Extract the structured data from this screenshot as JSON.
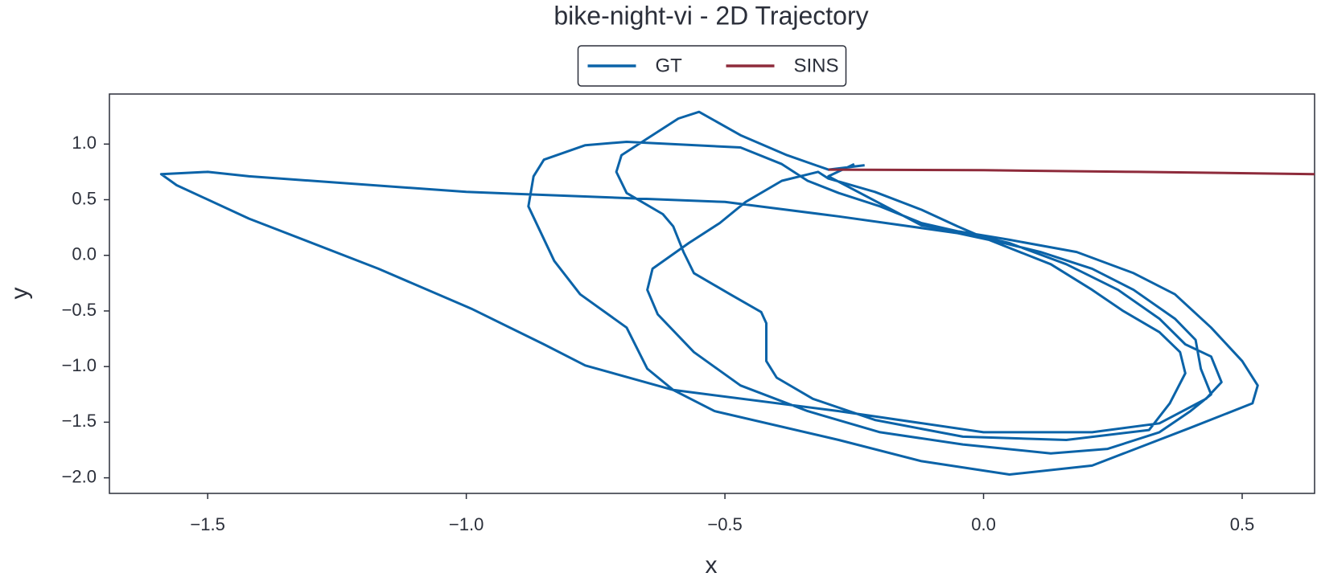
{
  "chart_data": {
    "type": "line",
    "title": "bike-night-vi - 2D Trajectory",
    "x_label": "x",
    "y_label": "y",
    "xlim": [
      -1.69,
      0.64
    ],
    "ylim": [
      -2.14,
      1.45
    ],
    "xticks": [
      {
        "value": -1.5,
        "label": "−1.5"
      },
      {
        "value": -1.0,
        "label": "−1.0"
      },
      {
        "value": -0.5,
        "label": "−0.5"
      },
      {
        "value": 0.0,
        "label": "0.0"
      },
      0.5
    ],
    "yticks": [
      {
        "value": -2.0,
        "label": "−2.0"
      },
      {
        "value": -1.5,
        "label": "−1.5"
      },
      {
        "value": -1.0,
        "label": "−1.0"
      },
      {
        "value": -0.5,
        "label": "−0.5"
      },
      {
        "value": 0.0,
        "label": "0.0"
      },
      0.5,
      {
        "value": 1.0,
        "label": "1.0"
      }
    ],
    "grid": false,
    "legend": "upper center",
    "series": [
      {
        "name": "GT",
        "color": "#0b63a8",
        "x": [
          -0.23,
          -0.3,
          -0.38,
          -0.47,
          -0.55,
          -0.59,
          -0.65,
          -0.7,
          -0.71,
          -0.69,
          -0.62,
          -0.6,
          -0.58,
          -0.56,
          -0.49,
          -0.43,
          -0.42,
          -0.42,
          -0.4,
          -0.33,
          -0.21,
          -0.04,
          0.16,
          0.32,
          0.36,
          0.39,
          0.38,
          0.34,
          0.27,
          0.21,
          0.13,
          0.01,
          -0.05,
          -0.12,
          -0.21,
          -0.3,
          -0.32,
          -0.39,
          -0.46,
          -0.51,
          -0.57,
          -0.64,
          -0.65,
          -0.63,
          -0.56,
          -0.47,
          -0.34,
          -0.2,
          -0.04,
          0.13,
          0.24,
          0.34,
          0.4,
          0.44,
          0.42,
          0.41,
          0.37,
          0.29,
          0.21,
          0.11,
          0.03,
          -0.05,
          -0.28,
          -0.5,
          -1.0,
          -1.42,
          -1.5,
          -1.59,
          -1.56,
          -1.42,
          -1.17,
          -0.99,
          -0.85,
          -0.77,
          -0.6,
          -0.28,
          0.0,
          0.21,
          0.34,
          0.43,
          0.46,
          0.44,
          0.39,
          0.34,
          0.26,
          0.16,
          0.05,
          -0.12,
          -0.2,
          -0.28,
          -0.34,
          -0.39,
          -0.47,
          -0.69,
          -0.77,
          -0.85,
          -0.87,
          -0.88,
          -0.83,
          -0.78,
          -0.69,
          -0.65,
          -0.6,
          -0.52,
          -0.28,
          -0.12,
          0.05,
          0.21,
          0.4,
          0.52,
          0.53,
          0.5,
          0.44,
          0.37,
          0.29,
          0.18,
          0.05,
          -0.12,
          -0.3,
          -0.25
        ],
        "values": [
          0.81,
          0.77,
          0.9,
          1.08,
          1.29,
          1.23,
          1.05,
          0.9,
          0.75,
          0.56,
          0.37,
          0.26,
          0.03,
          -0.16,
          -0.35,
          -0.51,
          -0.61,
          -0.95,
          -1.1,
          -1.29,
          -1.48,
          -1.63,
          -1.66,
          -1.57,
          -1.33,
          -1.06,
          -0.87,
          -0.69,
          -0.5,
          -0.31,
          -0.08,
          0.14,
          0.26,
          0.41,
          0.57,
          0.69,
          0.75,
          0.67,
          0.48,
          0.29,
          0.11,
          -0.12,
          -0.31,
          -0.53,
          -0.87,
          -1.17,
          -1.4,
          -1.59,
          -1.7,
          -1.78,
          -1.74,
          -1.59,
          -1.4,
          -1.25,
          -1.02,
          -0.76,
          -0.57,
          -0.31,
          -0.12,
          0.03,
          0.12,
          0.2,
          0.35,
          0.48,
          0.57,
          0.71,
          0.75,
          0.73,
          0.63,
          0.33,
          -0.12,
          -0.48,
          -0.8,
          -0.99,
          -1.21,
          -1.4,
          -1.59,
          -1.59,
          -1.51,
          -1.29,
          -1.14,
          -0.91,
          -0.8,
          -0.57,
          -0.31,
          -0.08,
          0.11,
          0.29,
          0.44,
          0.56,
          0.67,
          0.82,
          0.97,
          1.02,
          0.99,
          0.86,
          0.71,
          0.44,
          -0.05,
          -0.35,
          -0.65,
          -1.02,
          -1.21,
          -1.4,
          -1.66,
          -1.85,
          -1.97,
          -1.89,
          -1.55,
          -1.33,
          -1.17,
          -0.95,
          -0.65,
          -0.35,
          -0.16,
          0.03,
          0.14,
          0.27,
          0.71,
          0.82
        ]
      },
      {
        "name": "SINS",
        "color": "#8e2b3b",
        "x": [
          -0.3,
          0.0,
          0.3,
          0.64
        ],
        "values": [
          0.77,
          0.765,
          0.75,
          0.73
        ]
      }
    ]
  }
}
